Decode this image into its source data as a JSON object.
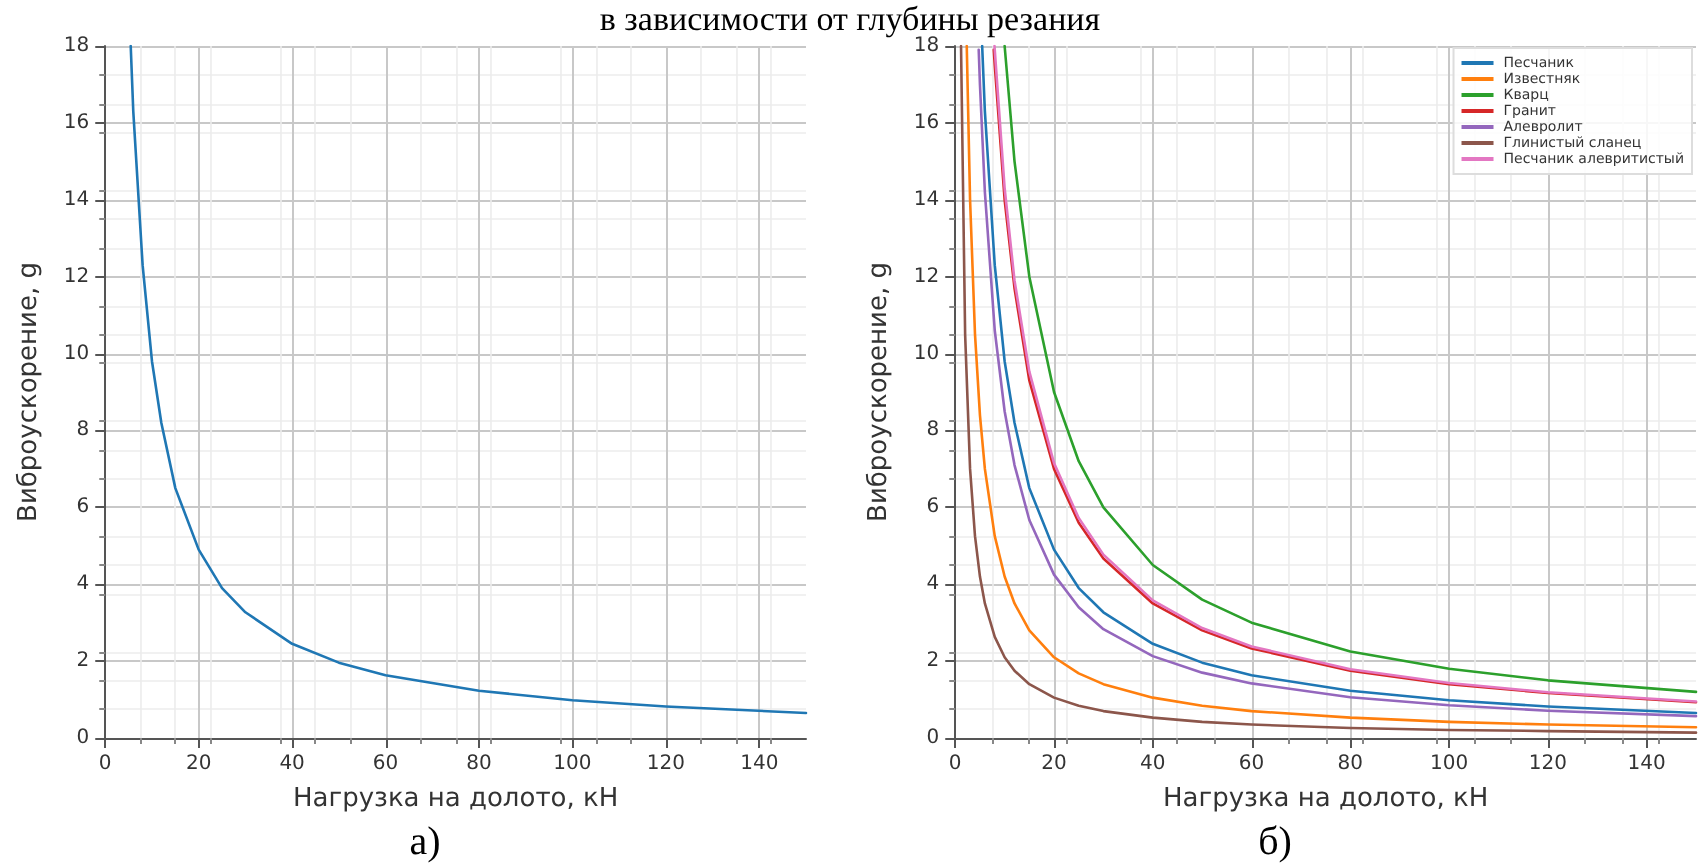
{
  "chart_data": [
    {
      "type": "line",
      "title": "в зависимости от глубины резания",
      "xlabel": "Нагрузка на долото, кН",
      "ylabel": "Виброускорение, g",
      "annotations": [
        "а)"
      ],
      "xlim": [
        0,
        150
      ],
      "xticks": [
        0,
        20,
        40,
        60,
        80,
        100,
        120,
        140
      ],
      "ylim": [
        0,
        18
      ],
      "yticks": [
        0,
        2,
        4,
        6,
        8,
        10,
        12,
        14,
        16,
        18
      ],
      "grid": true,
      "legend": false,
      "marker": "none",
      "line_style": "solid",
      "series": [
        {
          "color": "#1f77b4",
          "x": [
            5.45,
            6,
            8,
            10,
            12,
            15,
            20,
            25,
            30,
            40,
            50,
            60,
            80,
            100,
            120,
            150
          ],
          "values": [
            18,
            16.3,
            12.3,
            9.8,
            8.2,
            6.5,
            4.9,
            3.9,
            3.27,
            2.45,
            1.96,
            1.63,
            1.23,
            0.98,
            0.82,
            0.65
          ]
        }
      ]
    },
    {
      "type": "line",
      "xlabel": "Нагрузка на долото, кН",
      "ylabel": "Виброускорение, g",
      "annotations": [
        "б)"
      ],
      "xlim": [
        0,
        150
      ],
      "xticks": [
        0,
        20,
        40,
        60,
        80,
        100,
        120,
        140
      ],
      "ylim": [
        0,
        18
      ],
      "yticks": [
        0,
        2,
        4,
        6,
        8,
        10,
        12,
        14,
        16,
        18
      ],
      "grid": true,
      "legend": "top right",
      "marker": "none",
      "line_style": "solid",
      "series": [
        {
          "name": "Песчаник",
          "color": "#1f77b4",
          "x": [
            5.45,
            6,
            8,
            10,
            12,
            15,
            20,
            25,
            30,
            40,
            50,
            60,
            80,
            100,
            120,
            150
          ],
          "values": [
            18,
            16.3,
            12.3,
            9.8,
            8.2,
            6.5,
            4.9,
            3.9,
            3.27,
            2.45,
            1.96,
            1.63,
            1.23,
            0.98,
            0.82,
            0.65
          ]
        },
        {
          "name": "Известняк",
          "color": "#ff7f0e",
          "x": [
            2.33,
            3,
            4,
            5,
            6,
            8,
            10,
            12,
            15,
            20,
            25,
            30,
            40,
            50,
            60,
            80,
            100,
            120,
            150
          ],
          "values": [
            18,
            14,
            10.5,
            8.4,
            7,
            5.25,
            4.2,
            3.5,
            2.8,
            2.1,
            1.68,
            1.4,
            1.05,
            0.84,
            0.7,
            0.53,
            0.42,
            0.35,
            0.28
          ]
        },
        {
          "name": "Кварц",
          "color": "#2ca02c",
          "x": [
            10,
            12,
            15,
            20,
            25,
            30,
            40,
            50,
            60,
            80,
            100,
            120,
            150
          ],
          "values": [
            18,
            15,
            12,
            9,
            7.2,
            6,
            4.5,
            3.6,
            3,
            2.25,
            1.8,
            1.5,
            1.2
          ]
        },
        {
          "name": "Гранит",
          "color": "#d62728",
          "x": [
            7.8,
            8,
            10,
            12,
            15,
            20,
            25,
            30,
            40,
            50,
            60,
            80,
            100,
            120,
            150
          ],
          "values": [
            17.9,
            17.5,
            14,
            11.7,
            9.3,
            7,
            5.6,
            4.67,
            3.5,
            2.8,
            2.33,
            1.75,
            1.4,
            1.17,
            0.93
          ]
        },
        {
          "name": "Алевролит",
          "color": "#9467bd",
          "x": [
            4.75,
            5,
            6,
            8,
            10,
            12,
            15,
            20,
            25,
            30,
            40,
            50,
            60,
            80,
            100,
            120,
            150
          ],
          "values": [
            17.9,
            17,
            14.2,
            10.6,
            8.5,
            7.1,
            5.67,
            4.25,
            3.4,
            2.83,
            2.13,
            1.7,
            1.42,
            1.06,
            0.85,
            0.71,
            0.57
          ]
        },
        {
          "name": "Глинистый сланец",
          "color": "#8c564b",
          "x": [
            1.17,
            2,
            3,
            4,
            5,
            6,
            8,
            10,
            12,
            15,
            20,
            25,
            30,
            40,
            50,
            60,
            80,
            100,
            120,
            150
          ],
          "values": [
            18,
            10.5,
            7,
            5.25,
            4.2,
            3.5,
            2.63,
            2.1,
            1.75,
            1.4,
            1.05,
            0.84,
            0.7,
            0.53,
            0.42,
            0.35,
            0.26,
            0.21,
            0.18,
            0.14
          ]
        },
        {
          "name": "Песчаник алевритистый",
          "color": "#e377c2",
          "x": [
            7.95,
            8,
            10,
            12,
            15,
            20,
            25,
            30,
            40,
            50,
            60,
            80,
            100,
            120,
            150
          ],
          "values": [
            18,
            17.9,
            14.3,
            11.9,
            9.53,
            7.15,
            5.72,
            4.77,
            3.58,
            2.86,
            2.38,
            1.79,
            1.43,
            1.19,
            0.95
          ]
        }
      ]
    }
  ]
}
